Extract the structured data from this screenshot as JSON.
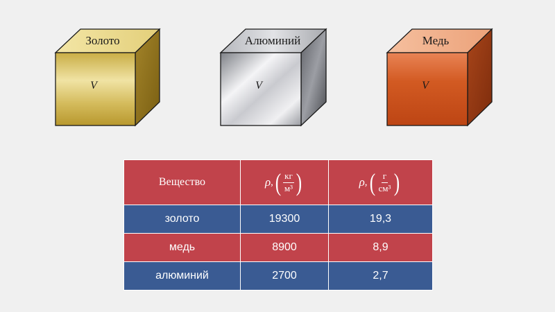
{
  "cubes": [
    {
      "label": "Золото",
      "volume_symbol": "V",
      "colors": {
        "front_light": "#ede0a0",
        "front_dark": "#c2a338",
        "top": "#f6e9ad",
        "side": "#8f7117"
      }
    },
    {
      "label": "Алюминий",
      "volume_symbol": "V",
      "colors": {
        "front_light": "#f2f2f4",
        "front_dark": "#8d8f95",
        "top": "#cfd0d4",
        "side": "#55575c"
      }
    },
    {
      "label": "Медь",
      "volume_symbol": "V",
      "colors": {
        "front_light": "#e26e36",
        "front_dark": "#c24a18",
        "top": "#f2b18e",
        "side": "#8f3510"
      }
    }
  ],
  "table": {
    "header": {
      "substance": "Вещество",
      "rho": "ρ",
      "col2_unit_num": "кг",
      "col2_unit_den": "м³",
      "col3_unit_num": "г",
      "col3_unit_den": "см³"
    },
    "rows": [
      {
        "substance": "золото",
        "kg_m3": "19300",
        "g_cm3": "19,3",
        "color": "#3a5b93"
      },
      {
        "substance": "медь",
        "kg_m3": "8900",
        "g_cm3": "8,9",
        "color": "#c1434b"
      },
      {
        "substance": "алюминий",
        "kg_m3": "2700",
        "g_cm3": "2,7",
        "color": "#3a5b93"
      }
    ],
    "header_color": "#c1434b"
  }
}
